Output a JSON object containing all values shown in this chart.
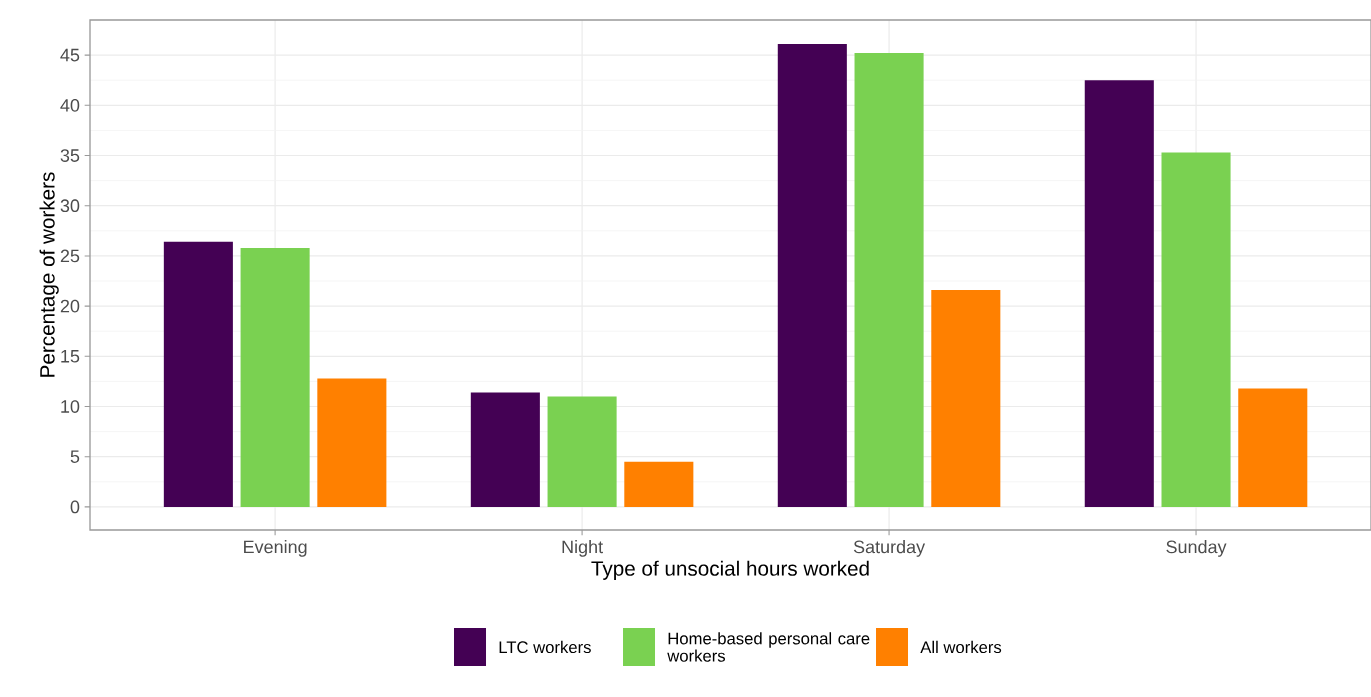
{
  "chart_data": {
    "type": "bar",
    "xlabel": "Type of unsocial hours worked",
    "ylabel": "Percentage of workers",
    "categories": [
      "Evening",
      "Night",
      "Saturday",
      "Sunday"
    ],
    "series": [
      {
        "name": "LTC workers",
        "color": "#440154",
        "values": [
          26.4,
          11.4,
          46.1,
          42.5
        ]
      },
      {
        "name": "Home-based personal care workers",
        "color": "#7ad151",
        "values": [
          25.8,
          11.0,
          45.2,
          35.3
        ]
      },
      {
        "name": "All workers",
        "color": "#ff8000",
        "values": [
          12.8,
          4.5,
          21.6,
          11.8
        ]
      }
    ],
    "ylim": [
      -2.3,
      48.5
    ],
    "yticks": [
      0,
      5,
      10,
      15,
      20,
      25,
      30,
      35,
      40,
      45
    ],
    "grid": true,
    "legend": "bottom"
  }
}
